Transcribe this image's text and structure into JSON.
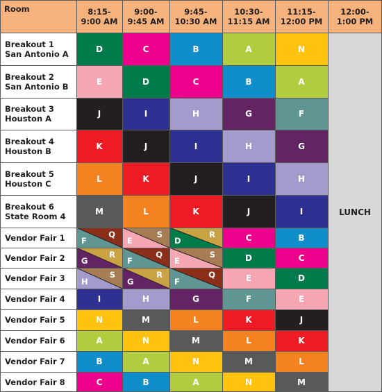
{
  "header": {
    "room": "Room",
    "times": [
      [
        "8:15-",
        "9:00 AM"
      ],
      [
        "9:00-",
        "9:45 AM"
      ],
      [
        "9:45-",
        "10:30 AM"
      ],
      [
        "10:30-",
        "11:15 AM"
      ],
      [
        "11:15-",
        "12:00 PM"
      ],
      [
        "12:00-",
        "1:00 PM"
      ]
    ]
  },
  "lunch_label": "LUNCH",
  "colors": {
    "A": "#b2cc3f",
    "B": "#0f8ec9",
    "C": "#ec008c",
    "D": "#007c4a",
    "E": "#f5a6b2",
    "F": "#5f9593",
    "G": "#632463",
    "H": "#a39bcc",
    "I": "#2e3092",
    "J": "#231f20",
    "K": "#ed1c24",
    "L": "#f58220",
    "M": "#58595b",
    "N": "#ffc20e",
    "Q": "#8b2f1b",
    "R": "#c9a244",
    "S": "#a67c52",
    "header": "#f6b27c",
    "lunch": "#d8d8d8"
  },
  "rows": [
    {
      "room": [
        "Breakout 1",
        "San Antonio A"
      ],
      "cells": [
        "D",
        "C",
        "B",
        "A",
        "N"
      ]
    },
    {
      "room": [
        "Breakout 2",
        "San Antonio B"
      ],
      "cells": [
        "E",
        "D",
        "C",
        "B",
        "A"
      ]
    },
    {
      "room": [
        "Breakout 3",
        "Houston A"
      ],
      "cells": [
        "J",
        "I",
        "H",
        "G",
        "F"
      ]
    },
    {
      "room": [
        "Breakout 4",
        "Houston B"
      ],
      "cells": [
        "K",
        "J",
        "I",
        "H",
        "G"
      ]
    },
    {
      "room": [
        "Breakout 5",
        "Houston C"
      ],
      "cells": [
        "L",
        "K",
        "J",
        "I",
        "H"
      ]
    },
    {
      "room": [
        "Breakout 6",
        "State Room 4"
      ],
      "cells": [
        "M",
        "L",
        "K",
        "J",
        "I"
      ]
    },
    {
      "room": [
        "Vendor Fair 1"
      ],
      "cells": [
        [
          "F",
          "Q"
        ],
        [
          "E",
          "S"
        ],
        [
          "D",
          "R"
        ],
        "C",
        "B"
      ]
    },
    {
      "room": [
        "Vendor Fair 2"
      ],
      "cells": [
        [
          "G",
          "R"
        ],
        [
          "F",
          "Q"
        ],
        [
          "E",
          "S"
        ],
        "D",
        "C"
      ]
    },
    {
      "room": [
        "Vendor Fair 3"
      ],
      "cells": [
        [
          "H",
          "S"
        ],
        [
          "G",
          "R"
        ],
        [
          "F",
          "Q"
        ],
        "E",
        "D"
      ]
    },
    {
      "room": [
        "Vendor Fair 4"
      ],
      "cells": [
        "I",
        "H",
        "G",
        "F",
        "E"
      ]
    },
    {
      "room": [
        "Vendor Fair 5"
      ],
      "cells": [
        "N",
        "M",
        "L",
        "K",
        "J"
      ]
    },
    {
      "room": [
        "Vendor Fair 6"
      ],
      "cells": [
        "A",
        "N",
        "M",
        "L",
        "K"
      ]
    },
    {
      "room": [
        "Vendor Fair 7"
      ],
      "cells": [
        "B",
        "A",
        "N",
        "M",
        "L"
      ]
    },
    {
      "room": [
        "Vendor Fair 8"
      ],
      "cells": [
        "C",
        "B",
        "A",
        "N",
        "M"
      ]
    }
  ]
}
